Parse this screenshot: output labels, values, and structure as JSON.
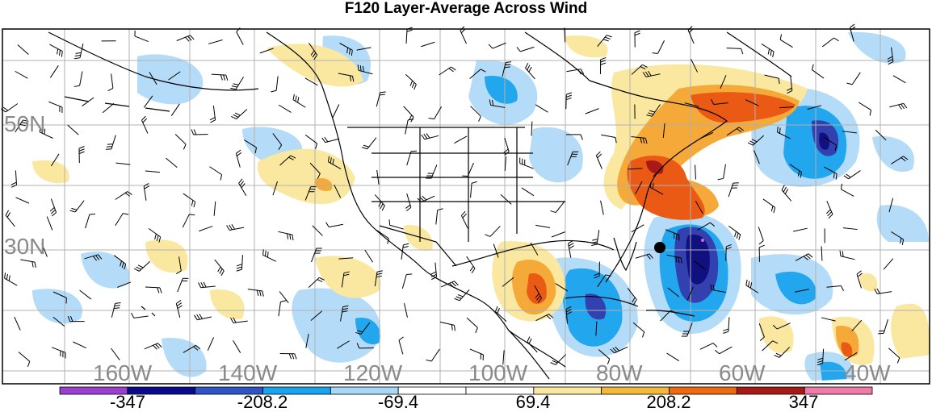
{
  "title": "F120 Layer-Average Across Wind",
  "lat_labels": [
    "50N",
    "30N"
  ],
  "lon_labels": [
    "160W",
    "140W",
    "120W",
    "100W",
    "80W",
    "60W",
    "40W"
  ],
  "colorbar": {
    "labels": [
      "-347",
      "-208.2",
      "-69.4",
      "69.4",
      "208.2",
      "347"
    ],
    "colors": [
      "#9b3fd0",
      "#0a0a8c",
      "#2f54c8",
      "#1aa3ee",
      "#a8d8f8",
      "#ffffff",
      "#ffffff",
      "#fbe8a0",
      "#f4b93a",
      "#ec6a10",
      "#a81a18",
      "#f07aa8"
    ]
  },
  "colors": {
    "blue_light": "#b4dcf8",
    "blue_mid": "#22a6ee",
    "blue_dark": "#3340b0",
    "blue_core": "#101080",
    "yellow": "#fbe8a0",
    "orange": "#f4a938",
    "red_orange": "#ea5a14",
    "grid": "#b0b0b0"
  },
  "marker": {
    "label": "storm-center-dot"
  }
}
